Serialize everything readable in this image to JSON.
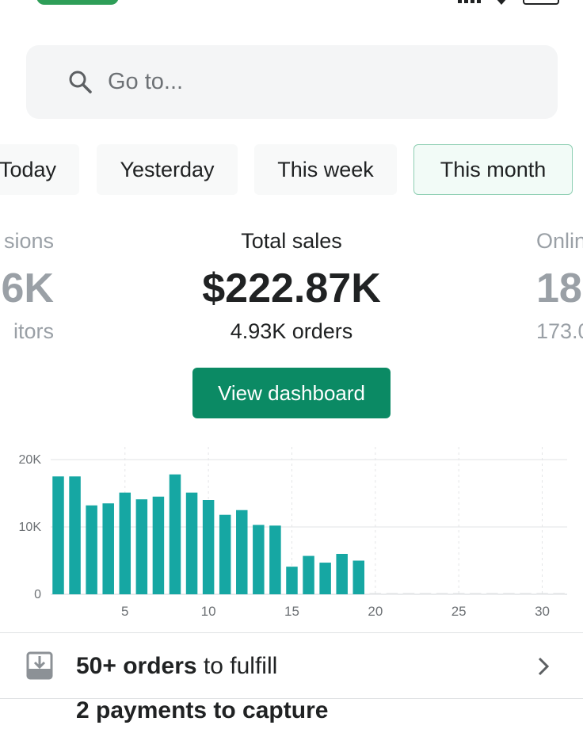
{
  "search": {
    "placeholder": "Go to..."
  },
  "tabs": [
    {
      "label": "Today",
      "active": false
    },
    {
      "label": "Yesterday",
      "active": false
    },
    {
      "label": "This week",
      "active": false
    },
    {
      "label": "This month",
      "active": true
    }
  ],
  "metrics": {
    "left": {
      "label": "sions",
      "value": "6K",
      "sub": "itors"
    },
    "center": {
      "label": "Total sales",
      "value": "$222.87K",
      "sub": "4.93K orders"
    },
    "right": {
      "label": "Onlin",
      "value": "18",
      "sub": "173.0"
    }
  },
  "dashboard_button": {
    "label": "View dashboard"
  },
  "chart_data": {
    "type": "bar",
    "x": [
      1,
      2,
      3,
      4,
      5,
      6,
      7,
      8,
      9,
      10,
      11,
      12,
      13,
      14,
      15,
      16,
      17,
      18,
      19,
      20,
      21,
      22,
      23,
      24,
      25,
      26,
      27,
      28,
      29,
      30,
      31
    ],
    "values": [
      17500,
      17500,
      13200,
      13500,
      15100,
      14100,
      14500,
      17800,
      15100,
      14000,
      11800,
      12500,
      10300,
      10200,
      4100,
      5700,
      4700,
      6000,
      5000,
      0,
      0,
      0,
      0,
      0,
      0,
      0,
      0,
      0,
      0,
      0,
      0
    ],
    "ylim": [
      0,
      20000
    ],
    "y_ticks": [
      {
        "value": 0,
        "label": "0"
      },
      {
        "value": 10000,
        "label": "10K"
      },
      {
        "value": 20000,
        "label": "20K"
      }
    ],
    "x_ticks": [
      5,
      10,
      15,
      20,
      25,
      30
    ],
    "bar_color": "#16a7a3",
    "grid": true
  },
  "fulfill": {
    "count_text": "50+ orders",
    "rest_text": " to fulfill"
  },
  "next_row": {
    "text": "2 payments to capture"
  },
  "colors": {
    "primary": "#0b8a64",
    "bar": "#16a7a3",
    "active_tab_border": "#8fcfb3"
  }
}
